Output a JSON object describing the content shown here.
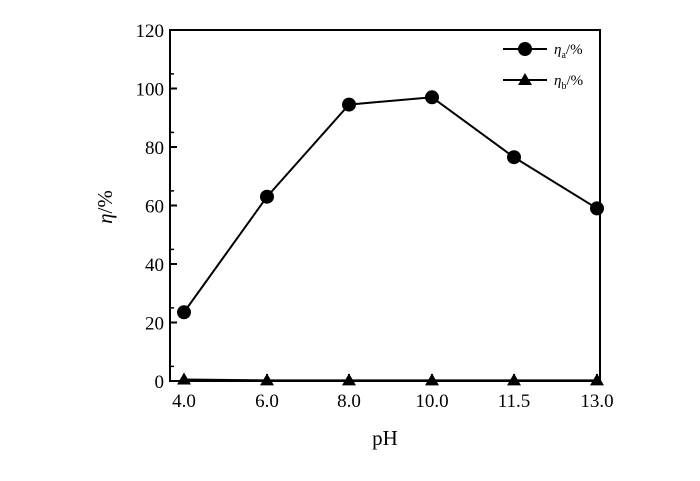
{
  "chart_data": {
    "type": "line",
    "categories": [
      "4.0",
      "6.0",
      "8.0",
      "10.0",
      "11.5",
      "13.0"
    ],
    "series": [
      {
        "name_symbol": "η",
        "name_sub": "a",
        "name_suffix": "/%",
        "marker": "circle",
        "values": [
          23.5,
          63,
          94.5,
          97,
          76.5,
          59
        ]
      },
      {
        "name_symbol": "η",
        "name_sub": "b",
        "name_suffix": "/%",
        "marker": "triangle",
        "values": [
          0.5,
          0.2,
          0.2,
          0.2,
          0.2,
          0.2
        ]
      }
    ],
    "xlabel": "pH",
    "ylabel_symbol": "η",
    "ylabel_suffix": "/%",
    "yticks": [
      0,
      20,
      40,
      60,
      80,
      100,
      120
    ],
    "ylim": [
      0,
      120
    ],
    "grid": false,
    "legend_position": "top-right"
  }
}
